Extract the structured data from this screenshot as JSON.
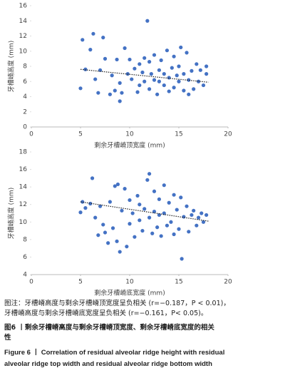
{
  "chart_data": [
    {
      "type": "scatter",
      "xlabel": "剩余牙槽嵴顶宽度 (mm)",
      "ylabel": "牙槽嵴高度 (mm)",
      "color": "#4472c4",
      "xlim": [
        0,
        20
      ],
      "xticks": [
        0,
        5,
        10,
        15,
        20
      ],
      "ylim": [
        0,
        16
      ],
      "yticks": [
        0,
        2,
        4,
        6,
        8,
        10,
        12,
        14,
        16
      ],
      "x": [
        5,
        5.2,
        5.5,
        6,
        6.3,
        6.5,
        6.8,
        7,
        7.3,
        7.5,
        8,
        8.2,
        8.5,
        8.7,
        9,
        9,
        9.2,
        9.5,
        9.8,
        10,
        10.2,
        10.5,
        10.8,
        11,
        11,
        11.3,
        11.5,
        11.5,
        11.8,
        12,
        12,
        12.2,
        12.5,
        12.5,
        12.8,
        13,
        13,
        13.2,
        13.5,
        13.5,
        13.8,
        14,
        14,
        14.3,
        14.5,
        14.5,
        14.8,
        15,
        15,
        15.2,
        15.5,
        15.5,
        15.8,
        16,
        16,
        16.3,
        16.5,
        16.8,
        17,
        17.2,
        17.5,
        17.8,
        17.8
      ],
      "values": [
        5.1,
        11.5,
        7.6,
        10.2,
        12.3,
        6.3,
        4.5,
        7.5,
        11.8,
        9,
        4.3,
        6.8,
        4.8,
        8.9,
        3.4,
        5.8,
        4.5,
        10.4,
        7,
        8.9,
        6.3,
        7.7,
        4.6,
        8.3,
        5.5,
        7.2,
        9.1,
        6,
        14,
        8.6,
        5,
        7,
        6.2,
        9.5,
        4.3,
        7.5,
        6,
        8.8,
        5.5,
        7,
        10.1,
        6.5,
        4.7,
        7.8,
        9.3,
        5.2,
        6.8,
        8,
        6,
        10.5,
        4.8,
        7,
        9.8,
        4.3,
        6.2,
        7.4,
        5,
        8.3,
        6,
        7.5,
        5.5,
        8,
        7
      ],
      "trendline": {
        "x": [
          5,
          18
        ],
        "y": [
          7.6,
          5.9
        ]
      }
    },
    {
      "type": "scatter",
      "xlabel": "剩余牙槽嵴底宽度 (mm)",
      "ylabel": "牙槽嵴高度 (mm)",
      "color": "#4472c4",
      "xlim": [
        0,
        20
      ],
      "xticks": [
        0,
        5,
        10,
        15,
        20
      ],
      "ylim": [
        4,
        18
      ],
      "yticks": [
        4,
        6,
        8,
        10,
        12,
        14,
        16,
        18
      ],
      "x": [
        5,
        5.2,
        5.5,
        6,
        6.2,
        6.5,
        6.8,
        7,
        7.3,
        7.5,
        7.8,
        8,
        8.3,
        8.5,
        8.7,
        8.8,
        9,
        9.2,
        9.5,
        9.7,
        10,
        10,
        10.3,
        10.5,
        10.8,
        11,
        11,
        11.3,
        11.5,
        11.8,
        12,
        12,
        12.3,
        12.5,
        12.5,
        12.8,
        13,
        13,
        13.2,
        13.5,
        13.5,
        13.8,
        14,
        14.2,
        14.5,
        14.5,
        14.8,
        15,
        15.2,
        15.3,
        15.5,
        15.8,
        16,
        16.3,
        16.5,
        16.8,
        17,
        17.3,
        17.5,
        17.8
      ],
      "values": [
        11.1,
        12.3,
        11.6,
        12.1,
        15,
        10.5,
        8.5,
        11.8,
        9.7,
        8.8,
        7.6,
        12.3,
        9.3,
        14.1,
        7.8,
        14.3,
        6.6,
        11.3,
        13.8,
        7.2,
        12.5,
        9.8,
        11,
        8.3,
        13,
        10.2,
        12,
        9,
        11.5,
        14.8,
        15.5,
        10.5,
        8.7,
        13.5,
        11.2,
        9.4,
        12.6,
        10.8,
        8.4,
        14.2,
        11,
        9.6,
        12.2,
        10,
        13.1,
        8.6,
        11.4,
        9.2,
        12.8,
        5.8,
        10.6,
        11.8,
        8.9,
        10.8,
        11.3,
        9.6,
        10.5,
        11,
        10,
        10.8
      ],
      "trendline": {
        "x": [
          5,
          18
        ],
        "y": [
          12.3,
          10.1
        ]
      }
    }
  ],
  "caption": {
    "note": [
      "图注：牙槽嵴高度与剩余牙槽嵴顶宽度呈负相关 (r=−0.187，P < 0.01)，",
      "牙槽嵴高度与剩余牙槽嵴底宽度呈负相关 (r=−0.161，P< 0.05)。"
    ],
    "title_cn": [
      "图6 丨剩余牙槽嵴高度与剩余牙槽嵴顶宽度、剩余牙槽嵴底宽度的相关",
      "性"
    ],
    "title_en": [
      "Figure 6 丨 Correlation of residual alveolar ridge height with residual",
      "alveolar ridge top width and residual alveolar ridge bottom width"
    ]
  }
}
